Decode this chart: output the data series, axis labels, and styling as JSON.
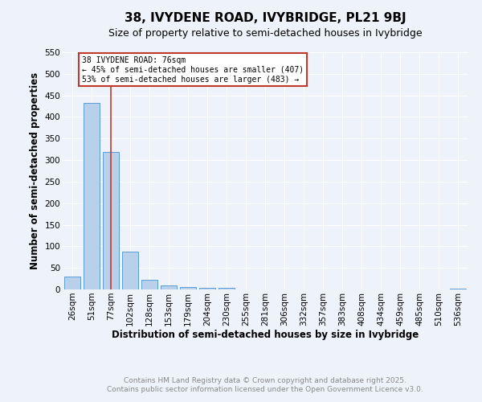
{
  "title": "38, IVYDENE ROAD, IVYBRIDGE, PL21 9BJ",
  "subtitle": "Size of property relative to semi-detached houses in Ivybridge",
  "xlabel": "Distribution of semi-detached houses by size in Ivybridge",
  "ylabel": "Number of semi-detached properties",
  "categories": [
    "26sqm",
    "51sqm",
    "77sqm",
    "102sqm",
    "128sqm",
    "153sqm",
    "179sqm",
    "204sqm",
    "230sqm",
    "255sqm",
    "281sqm",
    "306sqm",
    "332sqm",
    "357sqm",
    "383sqm",
    "408sqm",
    "434sqm",
    "459sqm",
    "485sqm",
    "510sqm",
    "536sqm"
  ],
  "values": [
    30,
    433,
    318,
    88,
    23,
    10,
    6,
    4,
    3,
    0,
    0,
    0,
    0,
    0,
    0,
    0,
    0,
    0,
    0,
    0,
    1
  ],
  "bar_color": "#b8d0ea",
  "bar_edge_color": "#5b9bd5",
  "vline_x": 2,
  "vline_color": "#c0392b",
  "annotation_text": "38 IVYDENE ROAD: 76sqm\n← 45% of semi-detached houses are smaller (407)\n53% of semi-detached houses are larger (483) →",
  "annotation_box_color": "#ffffff",
  "annotation_box_edge": "#c0392b",
  "ylim": [
    0,
    550
  ],
  "yticks": [
    0,
    50,
    100,
    150,
    200,
    250,
    300,
    350,
    400,
    450,
    500,
    550
  ],
  "footer1": "Contains HM Land Registry data © Crown copyright and database right 2025.",
  "footer2": "Contains public sector information licensed under the Open Government Licence v3.0.",
  "bg_color": "#eef2fa",
  "grid_color": "#ffffff",
  "title_fontsize": 11,
  "subtitle_fontsize": 9,
  "axis_label_fontsize": 8.5,
  "tick_fontsize": 7.5,
  "footer_fontsize": 6.5
}
